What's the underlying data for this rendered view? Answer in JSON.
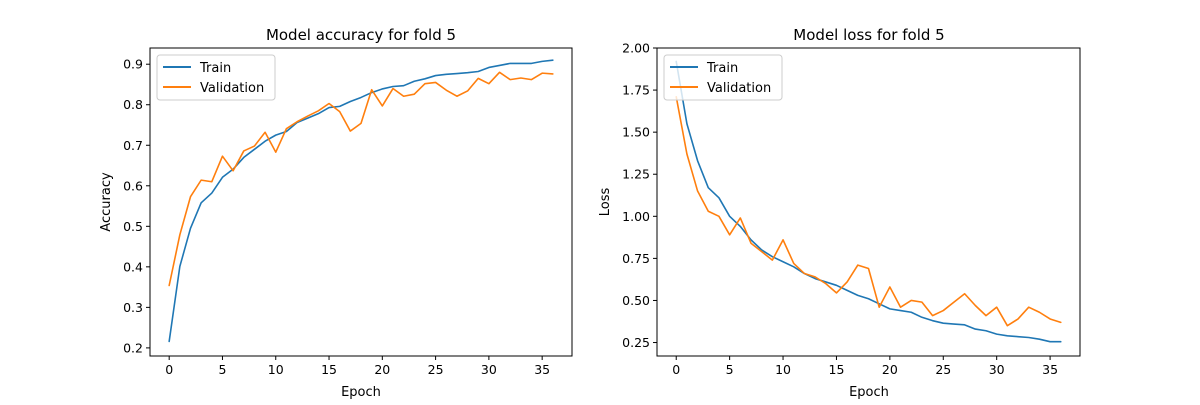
{
  "colors": {
    "train": "#1f77b4",
    "validation": "#ff7f0e"
  },
  "chart_data": [
    {
      "type": "line",
      "title": "Model accuracy for fold 5",
      "xlabel": "Epoch",
      "ylabel": "Accuracy",
      "xlim": [
        -1.8,
        37.8
      ],
      "ylim": [
        0.18,
        0.94
      ],
      "xticks": [
        0,
        5,
        10,
        15,
        20,
        25,
        30,
        35
      ],
      "yticks": [
        0.2,
        0.3,
        0.4,
        0.5,
        0.6,
        0.7,
        0.8,
        0.9
      ],
      "tick_labels_y": [
        "0.2",
        "0.3",
        "0.4",
        "0.5",
        "0.6",
        "0.7",
        "0.8",
        "0.9"
      ],
      "grid": false,
      "legend": "upper left",
      "x": [
        0,
        1,
        2,
        3,
        4,
        5,
        6,
        7,
        8,
        9,
        10,
        11,
        12,
        13,
        14,
        15,
        16,
        17,
        18,
        19,
        20,
        21,
        22,
        23,
        24,
        25,
        26,
        27,
        28,
        29,
        30,
        31,
        32,
        33,
        34,
        35,
        36
      ],
      "series": [
        {
          "name": "Train",
          "values": [
            0.216,
            0.401,
            0.495,
            0.558,
            0.582,
            0.621,
            0.641,
            0.67,
            0.69,
            0.71,
            0.725,
            0.734,
            0.756,
            0.767,
            0.778,
            0.793,
            0.796,
            0.808,
            0.818,
            0.83,
            0.839,
            0.845,
            0.847,
            0.858,
            0.864,
            0.872,
            0.875,
            0.877,
            0.879,
            0.882,
            0.892,
            0.897,
            0.902,
            0.902,
            0.902,
            0.907,
            0.91
          ]
        },
        {
          "name": "Validation",
          "values": [
            0.354,
            0.479,
            0.573,
            0.614,
            0.61,
            0.673,
            0.637,
            0.686,
            0.698,
            0.732,
            0.683,
            0.741,
            0.758,
            0.772,
            0.785,
            0.803,
            0.783,
            0.735,
            0.754,
            0.837,
            0.797,
            0.84,
            0.821,
            0.826,
            0.852,
            0.855,
            0.836,
            0.821,
            0.834,
            0.865,
            0.852,
            0.88,
            0.862,
            0.866,
            0.862,
            0.878,
            0.876
          ]
        }
      ]
    },
    {
      "type": "line",
      "title": "Model loss for fold 5",
      "xlabel": "Epoch",
      "ylabel": "Loss",
      "xlim": [
        -1.8,
        37.8
      ],
      "ylim": [
        0.17,
        2.0
      ],
      "xticks": [
        0,
        5,
        10,
        15,
        20,
        25,
        30,
        35
      ],
      "yticks": [
        0.25,
        0.5,
        0.75,
        1.0,
        1.25,
        1.5,
        1.75,
        2.0
      ],
      "tick_labels_y": [
        "0.25",
        "0.50",
        "0.75",
        "1.00",
        "1.25",
        "1.50",
        "1.75",
        "2.00"
      ],
      "grid": false,
      "legend": "upper left",
      "x": [
        0,
        1,
        2,
        3,
        4,
        5,
        6,
        7,
        8,
        9,
        10,
        11,
        12,
        13,
        14,
        15,
        16,
        17,
        18,
        19,
        20,
        21,
        22,
        23,
        24,
        25,
        26,
        27,
        28,
        29,
        30,
        31,
        32,
        33,
        34,
        35,
        36
      ],
      "series": [
        {
          "name": "Train",
          "values": [
            1.92,
            1.55,
            1.33,
            1.17,
            1.11,
            1.0,
            0.94,
            0.86,
            0.8,
            0.76,
            0.73,
            0.7,
            0.66,
            0.63,
            0.61,
            0.59,
            0.56,
            0.53,
            0.51,
            0.48,
            0.45,
            0.44,
            0.43,
            0.4,
            0.38,
            0.365,
            0.36,
            0.355,
            0.33,
            0.32,
            0.3,
            0.29,
            0.285,
            0.28,
            0.27,
            0.255,
            0.255
          ]
        },
        {
          "name": "Validation",
          "values": [
            1.71,
            1.37,
            1.15,
            1.03,
            1.0,
            0.89,
            0.99,
            0.84,
            0.79,
            0.74,
            0.86,
            0.72,
            0.66,
            0.64,
            0.6,
            0.545,
            0.61,
            0.71,
            0.69,
            0.46,
            0.58,
            0.46,
            0.5,
            0.49,
            0.41,
            0.44,
            0.49,
            0.54,
            0.47,
            0.41,
            0.46,
            0.35,
            0.39,
            0.46,
            0.43,
            0.39,
            0.37
          ]
        }
      ]
    }
  ]
}
